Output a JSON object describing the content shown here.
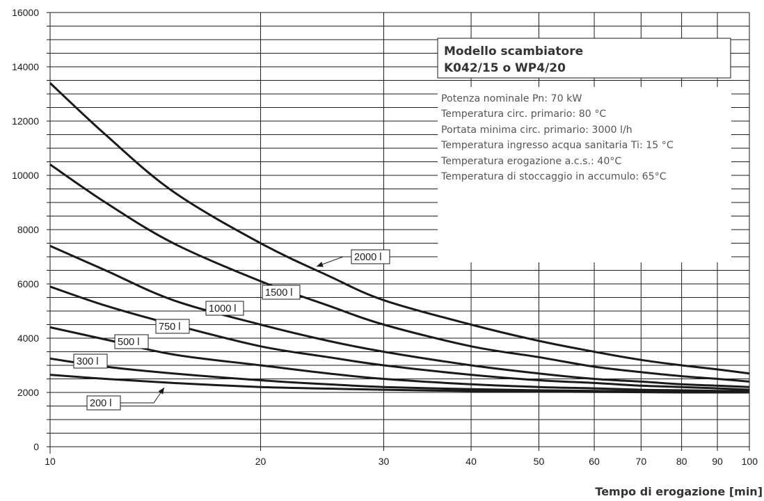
{
  "chart_data": {
    "type": "line",
    "xscale": "log",
    "xlim": [
      10,
      100
    ],
    "ylim": [
      0,
      16000
    ],
    "xticks": [
      10,
      20,
      30,
      40,
      50,
      60,
      70,
      80,
      90,
      100
    ],
    "yticks": [
      0,
      2000,
      4000,
      6000,
      8000,
      10000,
      12000,
      14000,
      16000
    ],
    "ylabel": "",
    "xlabel": "Tempo di erogazione [min]",
    "grid": true,
    "model_box": {
      "line1": "Modello scambiatore",
      "line2": "K042/15 o WP4/20"
    },
    "info_lines": [
      "Potenza nominale Pn: 70 kW",
      "Temperatura circ. primario: 80 °C",
      "Portata minima circ. primario: 3000 l/h",
      "Temperatura ingresso acqua sanitaria Ti: 15 °C",
      "Temperatura erogazione a.c.s.: 40°C",
      "Temperatura di stoccaggio in accumulo: 65°C"
    ],
    "series": [
      {
        "name": "2000 l",
        "x": [
          10,
          12,
          15,
          20,
          25,
          30,
          40,
          50,
          60,
          70,
          80,
          90,
          100
        ],
        "values": [
          13400,
          11500,
          9400,
          7500,
          6300,
          5400,
          4500,
          3900,
          3500,
          3200,
          3000,
          2850,
          2700
        ]
      },
      {
        "name": "1500 l",
        "x": [
          10,
          12,
          15,
          20,
          25,
          30,
          40,
          50,
          60,
          70,
          80,
          90,
          100
        ],
        "values": [
          10400,
          9000,
          7500,
          6100,
          5200,
          4500,
          3700,
          3300,
          2950,
          2750,
          2600,
          2500,
          2400
        ]
      },
      {
        "name": "1000 l",
        "x": [
          10,
          12,
          15,
          20,
          25,
          30,
          40,
          50,
          60,
          70,
          80,
          90,
          100
        ],
        "values": [
          7400,
          6500,
          5400,
          4500,
          3900,
          3500,
          3000,
          2700,
          2500,
          2400,
          2300,
          2250,
          2200
        ]
      },
      {
        "name": "750 l",
        "x": [
          10,
          12,
          15,
          20,
          25,
          30,
          40,
          50,
          60,
          70,
          80,
          90,
          100
        ],
        "values": [
          5900,
          5200,
          4500,
          3700,
          3300,
          3000,
          2650,
          2450,
          2350,
          2250,
          2200,
          2150,
          2100
        ]
      },
      {
        "name": "500 l",
        "x": [
          10,
          12,
          15,
          20,
          25,
          30,
          40,
          50,
          60,
          70,
          80,
          90,
          100
        ],
        "values": [
          4400,
          3950,
          3400,
          3000,
          2700,
          2500,
          2300,
          2200,
          2150,
          2100,
          2080,
          2060,
          2050
        ]
      },
      {
        "name": "300 l",
        "x": [
          10,
          12,
          15,
          20,
          25,
          30,
          40,
          50,
          60,
          70,
          80,
          90,
          100
        ],
        "values": [
          3250,
          2950,
          2700,
          2450,
          2300,
          2200,
          2120,
          2080,
          2060,
          2040,
          2030,
          2020,
          2010
        ]
      },
      {
        "name": "200 l",
        "x": [
          10,
          12,
          15,
          20,
          25,
          30,
          40,
          50,
          60,
          70,
          80,
          90,
          100
        ],
        "values": [
          2650,
          2500,
          2350,
          2200,
          2140,
          2100,
          2050,
          2030,
          2020,
          2010,
          2000,
          2000,
          2000
        ]
      }
    ],
    "series_labels": [
      {
        "text": "2000 l",
        "series": "2000 l"
      },
      {
        "text": "1500 l",
        "series": "1500 l"
      },
      {
        "text": "1000 l",
        "series": "1000 l"
      },
      {
        "text": "750 l",
        "series": "750 l"
      },
      {
        "text": "500 l",
        "series": "500 l"
      },
      {
        "text": "300 l",
        "series": "300 l"
      },
      {
        "text": "200 l",
        "series": "200 l"
      }
    ]
  }
}
